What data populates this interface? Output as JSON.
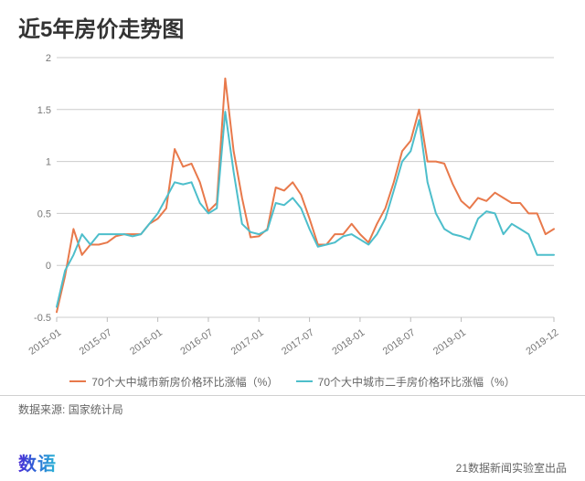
{
  "title": "近5年房价走势图",
  "legend": {
    "series1": "70个大中城市新房价格环比涨幅（%）",
    "series2": "70个大中城市二手房价格环比涨幅（%）"
  },
  "source_label": "数据来源:",
  "source_value": "国家统计局",
  "brand": "数语",
  "credit": "21数据新闻实验室出品",
  "chart": {
    "type": "line",
    "background_color": "#ffffff",
    "grid_color": "#cccccc",
    "axis_color": "#bbbbbb",
    "label_color": "#777777",
    "label_fontsize": 11,
    "ylim": [
      -0.5,
      2.0
    ],
    "ytick_step": 0.5,
    "yticks": [
      -0.5,
      0,
      0.5,
      1,
      1.5,
      2
    ],
    "x_categories": [
      "2015-01",
      "2015-02",
      "2015-03",
      "2015-04",
      "2015-05",
      "2015-06",
      "2015-07",
      "2015-08",
      "2015-09",
      "2015-10",
      "2015-11",
      "2015-12",
      "2016-01",
      "2016-02",
      "2016-03",
      "2016-04",
      "2016-05",
      "2016-06",
      "2016-07",
      "2016-08",
      "2016-09",
      "2016-10",
      "2016-11",
      "2016-12",
      "2017-01",
      "2017-02",
      "2017-03",
      "2017-04",
      "2017-05",
      "2017-06",
      "2017-07",
      "2017-08",
      "2017-09",
      "2017-10",
      "2017-11",
      "2017-12",
      "2018-01",
      "2018-02",
      "2018-03",
      "2018-04",
      "2018-05",
      "2018-06",
      "2018-07",
      "2018-08",
      "2018-09",
      "2018-10",
      "2018-11",
      "2018-12",
      "2019-01",
      "2019-02",
      "2019-03",
      "2019-04",
      "2019-05",
      "2019-06",
      "2019-07",
      "2019-08",
      "2019-09",
      "2019-10",
      "2019-11",
      "2019-12"
    ],
    "xtick_labels": [
      "2015-01",
      "2015-07",
      "2016-01",
      "2016-07",
      "2017-01",
      "2017-07",
      "2018-01",
      "2018-07",
      "2019-01",
      "2019-12"
    ],
    "xtick_indices": [
      0,
      6,
      12,
      18,
      24,
      30,
      36,
      42,
      48,
      59
    ],
    "series": [
      {
        "name": "series1",
        "color": "#e8794b",
        "line_width": 2,
        "values": [
          -0.45,
          -0.1,
          0.35,
          0.1,
          0.2,
          0.2,
          0.22,
          0.28,
          0.3,
          0.3,
          0.3,
          0.4,
          0.45,
          0.55,
          1.12,
          0.95,
          0.98,
          0.8,
          0.52,
          0.6,
          1.8,
          1.1,
          0.65,
          0.27,
          0.28,
          0.35,
          0.75,
          0.72,
          0.8,
          0.68,
          0.45,
          0.2,
          0.2,
          0.3,
          0.3,
          0.4,
          0.3,
          0.22,
          0.4,
          0.55,
          0.8,
          1.1,
          1.2,
          1.5,
          1.0,
          1.0,
          0.98,
          0.78,
          0.62,
          0.55,
          0.65,
          0.62,
          0.7,
          0.65,
          0.6,
          0.6,
          0.5,
          0.5,
          0.3,
          0.35
        ]
      },
      {
        "name": "series2",
        "color": "#4dbecb",
        "line_width": 2,
        "values": [
          -0.4,
          -0.05,
          0.1,
          0.3,
          0.2,
          0.3,
          0.3,
          0.3,
          0.3,
          0.28,
          0.3,
          0.4,
          0.5,
          0.65,
          0.8,
          0.78,
          0.8,
          0.6,
          0.5,
          0.55,
          1.48,
          0.9,
          0.4,
          0.32,
          0.3,
          0.34,
          0.6,
          0.58,
          0.65,
          0.55,
          0.35,
          0.18,
          0.2,
          0.22,
          0.28,
          0.3,
          0.25,
          0.2,
          0.3,
          0.45,
          0.72,
          1.0,
          1.1,
          1.4,
          0.8,
          0.5,
          0.35,
          0.3,
          0.28,
          0.25,
          0.45,
          0.52,
          0.5,
          0.3,
          0.4,
          0.35,
          0.3,
          0.1,
          0.1,
          0.1
        ]
      }
    ]
  }
}
